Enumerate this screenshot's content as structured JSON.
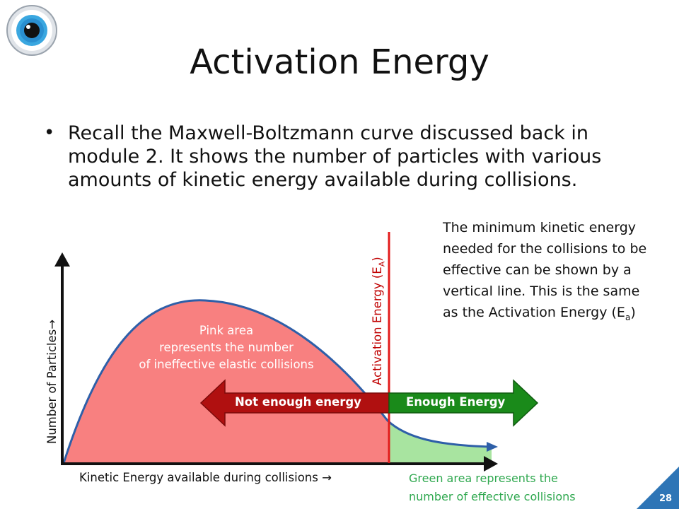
{
  "slide": {
    "title": "Activation Energy",
    "bullet": "Recall the Maxwell-Boltzmann curve discussed back in module 2.  It shows the number of particles with various amounts of kinetic energy available during collisions.",
    "note_main": "The minimum kinetic energy needed for the collisions to be effective can be shown by a vertical line.  This is the same as the Activation Energy (E",
    "note_sub": "a",
    "note_end": ")",
    "page_number": "28"
  },
  "diagram": {
    "pink_label_lines": [
      "Pink area",
      "represents the number",
      "of ineffective elastic collisions"
    ],
    "x_axis_label": "Kinetic Energy available during collisions →",
    "y_axis_label": "Number of Particles→",
    "activation_label": "Activation Energy (E",
    "activation_sub": "A",
    "activation_end": ")",
    "not_enough_label": "Not enough energy",
    "enough_label": "Enough Energy",
    "green_label_lines": [
      "Green area represents the",
      "number of effective collisions"
    ]
  },
  "colors": {
    "pink_area": "#f88080",
    "curve": "#2e5fa8",
    "activation_line": "#e31b1b",
    "red_arrow": "#b01010",
    "green_arrow": "#1a8a1a",
    "green_area": "#a8e4a0",
    "accent": "#2e75b6"
  },
  "icons": {
    "logo": "eye-icon"
  }
}
